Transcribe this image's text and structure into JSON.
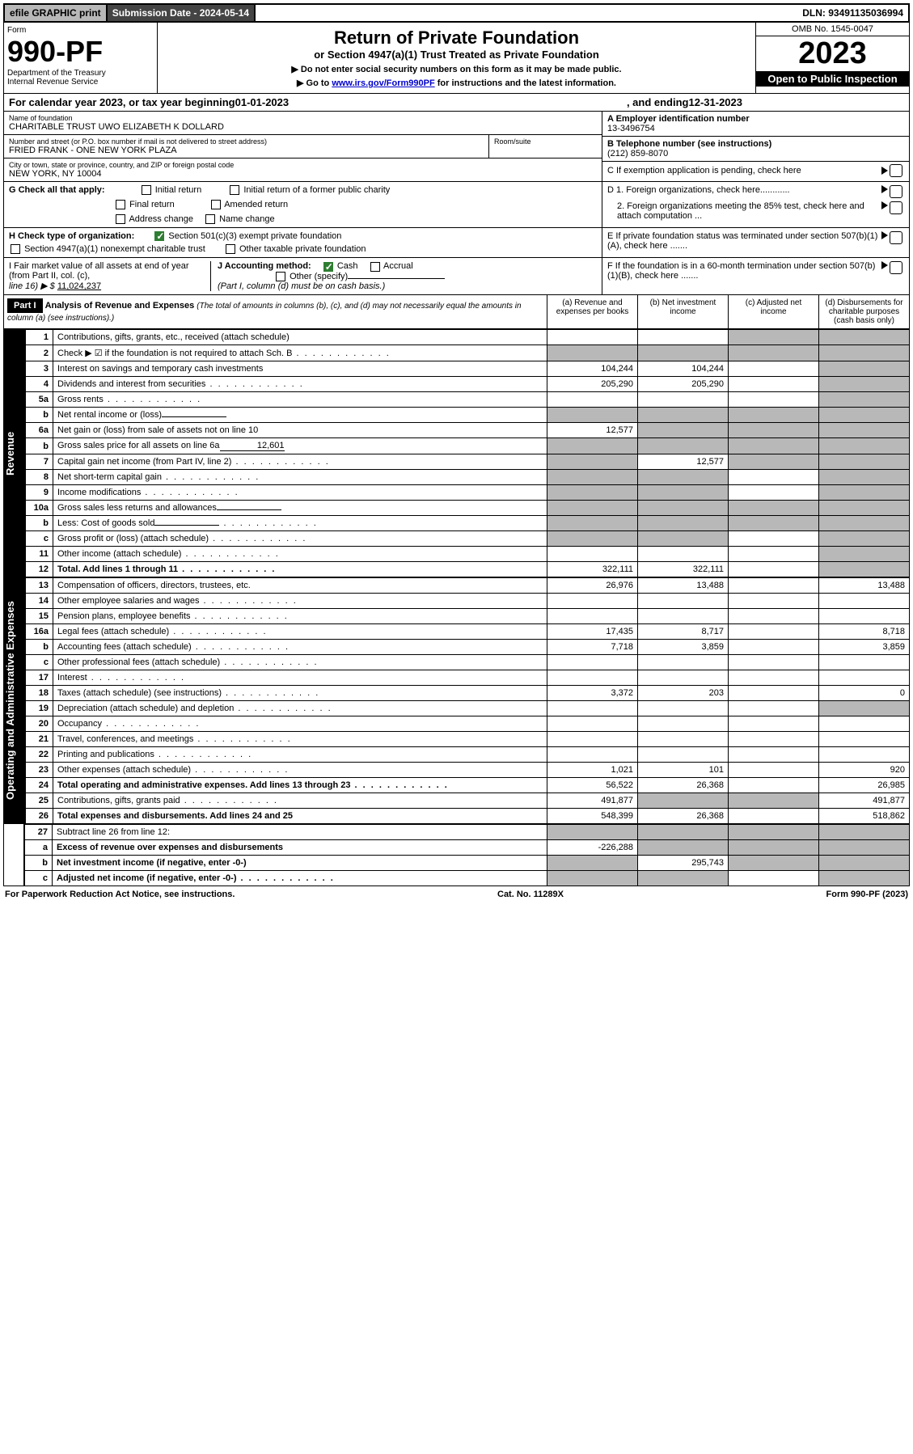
{
  "topbar": {
    "efile": "efile GRAPHIC print",
    "submission_label": "Submission Date - 2024-05-14",
    "dln": "DLN: 93491135036994"
  },
  "form_label": "Form",
  "form_number": "990-PF",
  "dept": "Department of the Treasury",
  "irs": "Internal Revenue Service",
  "title": "Return of Private Foundation",
  "subtitle": "or Section 4947(a)(1) Trust Treated as Private Foundation",
  "note1": "▶ Do not enter social security numbers on this form as it may be made public.",
  "note2_pre": "▶ Go to ",
  "note2_link": "www.irs.gov/Form990PF",
  "note2_post": " for instructions and the latest information.",
  "omb": "OMB No. 1545-0047",
  "year": "2023",
  "open": "Open to Public Inspection",
  "calendar": {
    "pre": "For calendar year 2023, or tax year beginning ",
    "begin": "01-01-2023",
    "mid": ", and ending ",
    "end": "12-31-2023"
  },
  "name_label": "Name of foundation",
  "name": "CHARITABLE TRUST UWO ELIZABETH K DOLLARD",
  "ein_label": "A Employer identification number",
  "ein": "13-3496754",
  "addr_label": "Number and street (or P.O. box number if mail is not delivered to street address)",
  "addr": "FRIED FRANK - ONE NEW YORK PLAZA",
  "room_label": "Room/suite",
  "phone_label": "B Telephone number (see instructions)",
  "phone": "(212) 859-8070",
  "city_label": "City or town, state or province, country, and ZIP or foreign postal code",
  "city": "NEW YORK, NY  10004",
  "c_label": "C If exemption application is pending, check here",
  "g_label": "G Check all that apply:",
  "g_opts": {
    "initial": "Initial return",
    "initial_former": "Initial return of a former public charity",
    "final": "Final return",
    "amended": "Amended return",
    "address": "Address change",
    "name": "Name change"
  },
  "d1": "D 1. Foreign organizations, check here............",
  "d2": "2. Foreign organizations meeting the 85% test, check here and attach computation ...",
  "h_label": "H Check type of organization:",
  "h_501c3": "Section 501(c)(3) exempt private foundation",
  "h_4947": "Section 4947(a)(1) nonexempt charitable trust",
  "h_other": "Other taxable private foundation",
  "e_label": "E If private foundation status was terminated under section 507(b)(1)(A), check here .......",
  "i_label": "I Fair market value of all assets at end of year (from Part II, col. (c),",
  "i_line": "line 16) ▶ $ ",
  "i_val": "11,024,237",
  "j_label": "J Accounting method:",
  "j_cash": "Cash",
  "j_accrual": "Accrual",
  "j_other": "Other (specify)",
  "j_note": "(Part I, column (d) must be on cash basis.)",
  "f_label": "F If the foundation is in a 60-month termination under section 507(b)(1)(B), check here .......",
  "part1": "Part I",
  "part1_title": "Analysis of Revenue and Expenses",
  "part1_note": "(The total of amounts in columns (b), (c), and (d) may not necessarily equal the amounts in column (a) (see instructions).)",
  "cols": {
    "a": "(a) Revenue and expenses per books",
    "b": "(b) Net investment income",
    "c": "(c) Adjusted net income",
    "d": "(d) Disbursements for charitable purposes (cash basis only)"
  },
  "sections": {
    "revenue": "Revenue",
    "expenses": "Operating and Administrative Expenses"
  },
  "rows": [
    {
      "n": "1",
      "lbl": "Contributions, gifts, grants, etc., received (attach schedule)",
      "a": "",
      "b": "",
      "c": "shade",
      "d": "shade"
    },
    {
      "n": "2",
      "lbl": "Check ▶ ☑ if the foundation is not required to attach Sch. B",
      "a": "shade",
      "b": "shade",
      "c": "shade",
      "d": "shade",
      "dots": true
    },
    {
      "n": "3",
      "lbl": "Interest on savings and temporary cash investments",
      "a": "104,244",
      "b": "104,244",
      "c": "",
      "d": "shade"
    },
    {
      "n": "4",
      "lbl": "Dividends and interest from securities",
      "a": "205,290",
      "b": "205,290",
      "c": "",
      "d": "shade",
      "dots": true
    },
    {
      "n": "5a",
      "lbl": "Gross rents",
      "a": "",
      "b": "",
      "c": "",
      "d": "shade",
      "dots": true
    },
    {
      "n": "b",
      "lbl": "Net rental income or (loss)",
      "a": "shade",
      "b": "shade",
      "c": "shade",
      "d": "shade",
      "inline": ""
    },
    {
      "n": "6a",
      "lbl": "Net gain or (loss) from sale of assets not on line 10",
      "a": "12,577",
      "b": "shade",
      "c": "shade",
      "d": "shade"
    },
    {
      "n": "b",
      "lbl": "Gross sales price for all assets on line 6a",
      "a": "shade",
      "b": "shade",
      "c": "shade",
      "d": "shade",
      "inline": "12,601"
    },
    {
      "n": "7",
      "lbl": "Capital gain net income (from Part IV, line 2)",
      "a": "shade",
      "b": "12,577",
      "c": "shade",
      "d": "shade",
      "dots": true
    },
    {
      "n": "8",
      "lbl": "Net short-term capital gain",
      "a": "shade",
      "b": "shade",
      "c": "",
      "d": "shade",
      "dots": true
    },
    {
      "n": "9",
      "lbl": "Income modifications",
      "a": "shade",
      "b": "shade",
      "c": "",
      "d": "shade",
      "dots": true
    },
    {
      "n": "10a",
      "lbl": "Gross sales less returns and allowances",
      "a": "shade",
      "b": "shade",
      "c": "shade",
      "d": "shade",
      "inline": ""
    },
    {
      "n": "b",
      "lbl": "Less: Cost of goods sold",
      "a": "shade",
      "b": "shade",
      "c": "shade",
      "d": "shade",
      "inline": "",
      "dots": true
    },
    {
      "n": "c",
      "lbl": "Gross profit or (loss) (attach schedule)",
      "a": "shade",
      "b": "shade",
      "c": "",
      "d": "shade",
      "dots": true
    },
    {
      "n": "11",
      "lbl": "Other income (attach schedule)",
      "a": "",
      "b": "",
      "c": "",
      "d": "shade",
      "dots": true
    },
    {
      "n": "12",
      "lbl": "Total. Add lines 1 through 11",
      "a": "322,111",
      "b": "322,111",
      "c": "",
      "d": "shade",
      "bold": true,
      "dots": true
    }
  ],
  "exp_rows": [
    {
      "n": "13",
      "lbl": "Compensation of officers, directors, trustees, etc.",
      "a": "26,976",
      "b": "13,488",
      "c": "",
      "d": "13,488"
    },
    {
      "n": "14",
      "lbl": "Other employee salaries and wages",
      "a": "",
      "b": "",
      "c": "",
      "d": "",
      "dots": true
    },
    {
      "n": "15",
      "lbl": "Pension plans, employee benefits",
      "a": "",
      "b": "",
      "c": "",
      "d": "",
      "dots": true
    },
    {
      "n": "16a",
      "lbl": "Legal fees (attach schedule)",
      "a": "17,435",
      "b": "8,717",
      "c": "",
      "d": "8,718",
      "dots": true
    },
    {
      "n": "b",
      "lbl": "Accounting fees (attach schedule)",
      "a": "7,718",
      "b": "3,859",
      "c": "",
      "d": "3,859",
      "dots": true
    },
    {
      "n": "c",
      "lbl": "Other professional fees (attach schedule)",
      "a": "",
      "b": "",
      "c": "",
      "d": "",
      "dots": true
    },
    {
      "n": "17",
      "lbl": "Interest",
      "a": "",
      "b": "",
      "c": "",
      "d": "",
      "dots": true
    },
    {
      "n": "18",
      "lbl": "Taxes (attach schedule) (see instructions)",
      "a": "3,372",
      "b": "203",
      "c": "",
      "d": "0",
      "dots": true
    },
    {
      "n": "19",
      "lbl": "Depreciation (attach schedule) and depletion",
      "a": "",
      "b": "",
      "c": "",
      "d": "shade",
      "dots": true
    },
    {
      "n": "20",
      "lbl": "Occupancy",
      "a": "",
      "b": "",
      "c": "",
      "d": "",
      "dots": true
    },
    {
      "n": "21",
      "lbl": "Travel, conferences, and meetings",
      "a": "",
      "b": "",
      "c": "",
      "d": "",
      "dots": true
    },
    {
      "n": "22",
      "lbl": "Printing and publications",
      "a": "",
      "b": "",
      "c": "",
      "d": "",
      "dots": true
    },
    {
      "n": "23",
      "lbl": "Other expenses (attach schedule)",
      "a": "1,021",
      "b": "101",
      "c": "",
      "d": "920",
      "dots": true
    },
    {
      "n": "24",
      "lbl": "Total operating and administrative expenses. Add lines 13 through 23",
      "a": "56,522",
      "b": "26,368",
      "c": "",
      "d": "26,985",
      "bold": true,
      "dots": true
    },
    {
      "n": "25",
      "lbl": "Contributions, gifts, grants paid",
      "a": "491,877",
      "b": "shade",
      "c": "shade",
      "d": "491,877",
      "dots": true
    },
    {
      "n": "26",
      "lbl": "Total expenses and disbursements. Add lines 24 and 25",
      "a": "548,399",
      "b": "26,368",
      "c": "",
      "d": "518,862",
      "bold": true
    }
  ],
  "bottom_rows": [
    {
      "n": "27",
      "lbl": "Subtract line 26 from line 12:",
      "a": "shade",
      "b": "shade",
      "c": "shade",
      "d": "shade"
    },
    {
      "n": "a",
      "lbl": "Excess of revenue over expenses and disbursements",
      "a": "-226,288",
      "b": "shade",
      "c": "shade",
      "d": "shade",
      "bold": true
    },
    {
      "n": "b",
      "lbl": "Net investment income (if negative, enter -0-)",
      "a": "shade",
      "b": "295,743",
      "c": "shade",
      "d": "shade",
      "bold": true
    },
    {
      "n": "c",
      "lbl": "Adjusted net income (if negative, enter -0-)",
      "a": "shade",
      "b": "shade",
      "c": "",
      "d": "shade",
      "bold": true,
      "dots": true
    }
  ],
  "footer": {
    "left": "For Paperwork Reduction Act Notice, see instructions.",
    "mid": "Cat. No. 11289X",
    "right": "Form 990-PF (2023)"
  }
}
